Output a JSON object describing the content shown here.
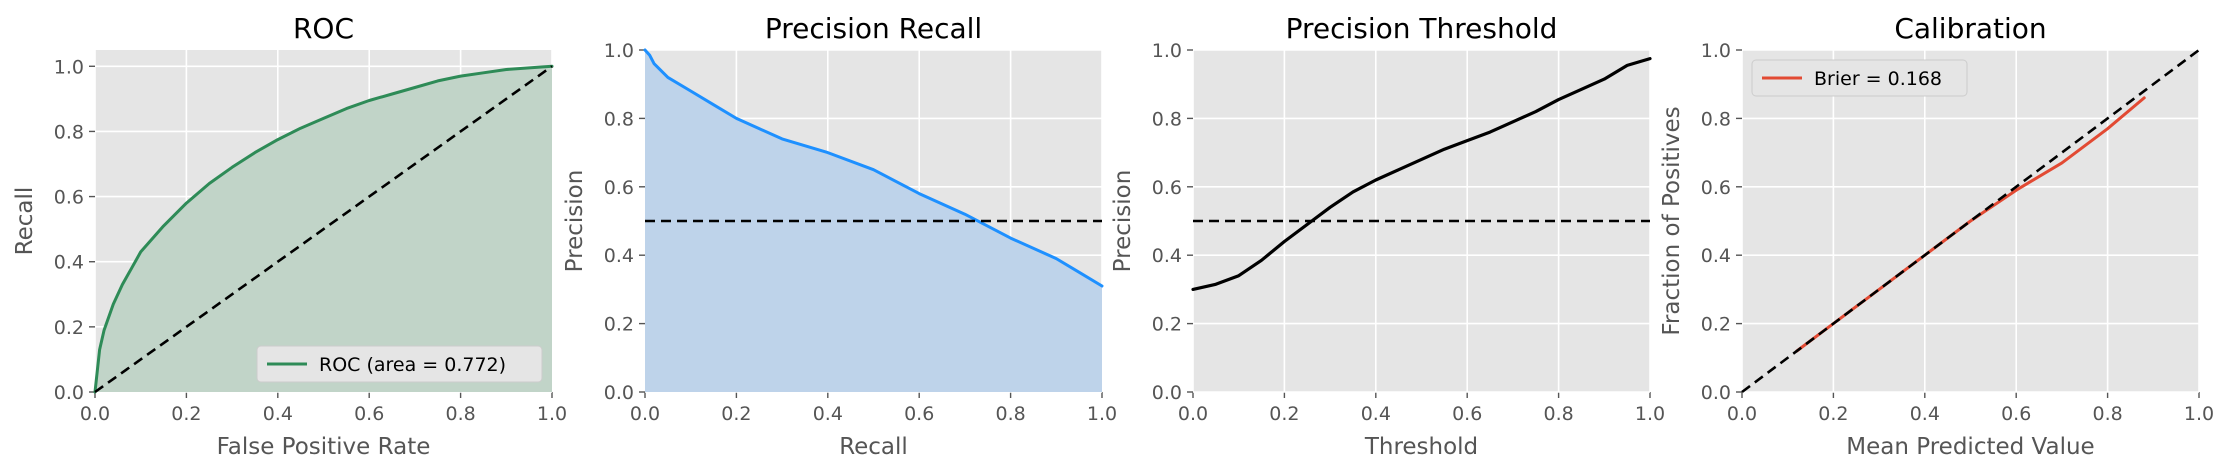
{
  "chart_data": [
    {
      "type": "area",
      "title": "ROC",
      "xlabel": "False Positive Rate",
      "ylabel": "Recall",
      "xlim": [
        0,
        1
      ],
      "ylim": [
        0,
        1.05
      ],
      "xticks": [
        "0.0",
        "0.2",
        "0.4",
        "0.6",
        "0.8",
        "1.0"
      ],
      "yticks": [
        "0.0",
        "0.2",
        "0.4",
        "0.6",
        "0.8",
        "1.0"
      ],
      "grid": true,
      "legend_position": "lower-right",
      "series": [
        {
          "name": "ROC (area = 0.772)",
          "color": "#2e8b57",
          "fill": "#c1d4c8",
          "x": [
            0,
            0.01,
            0.02,
            0.04,
            0.06,
            0.08,
            0.1,
            0.15,
            0.2,
            0.25,
            0.3,
            0.35,
            0.4,
            0.45,
            0.5,
            0.55,
            0.6,
            0.65,
            0.7,
            0.75,
            0.8,
            0.85,
            0.9,
            0.95,
            1.0
          ],
          "y": [
            0,
            0.13,
            0.19,
            0.27,
            0.33,
            0.38,
            0.43,
            0.51,
            0.58,
            0.64,
            0.69,
            0.735,
            0.775,
            0.81,
            0.84,
            0.87,
            0.895,
            0.915,
            0.935,
            0.955,
            0.97,
            0.98,
            0.99,
            0.995,
            1.0
          ]
        }
      ],
      "reference": {
        "x": [
          0,
          1
        ],
        "y": [
          0,
          1
        ],
        "style": "dashed",
        "color": "#000000"
      }
    },
    {
      "type": "area",
      "title": "Precision Recall",
      "xlabel": "Recall",
      "ylabel": "Precision",
      "xlim": [
        0,
        1
      ],
      "ylim": [
        0,
        1
      ],
      "xticks": [
        "0.0",
        "0.2",
        "0.4",
        "0.6",
        "0.8",
        "1.0"
      ],
      "yticks": [
        "0.0",
        "0.2",
        "0.4",
        "0.6",
        "0.8",
        "1.0"
      ],
      "grid": true,
      "series": [
        {
          "name": "",
          "color": "#1e90ff",
          "fill": "#bed3ea",
          "x": [
            0,
            0.01,
            0.02,
            0.05,
            0.1,
            0.15,
            0.2,
            0.3,
            0.4,
            0.5,
            0.6,
            0.7,
            0.8,
            0.9,
            0.95,
            1.0
          ],
          "y": [
            1.0,
            0.985,
            0.96,
            0.92,
            0.88,
            0.84,
            0.8,
            0.74,
            0.7,
            0.65,
            0.58,
            0.52,
            0.45,
            0.39,
            0.35,
            0.31
          ]
        }
      ],
      "reference": {
        "x": [
          0,
          1
        ],
        "y": [
          0.5,
          0.5
        ],
        "style": "dashed",
        "color": "#000000"
      }
    },
    {
      "type": "line",
      "title": "Precision Threshold",
      "xlabel": "Threshold",
      "ylabel": "Precision",
      "xlim": [
        0,
        1
      ],
      "ylim": [
        0,
        1
      ],
      "xticks": [
        "0.0",
        "0.2",
        "0.4",
        "0.6",
        "0.8",
        "1.0"
      ],
      "yticks": [
        "0.0",
        "0.2",
        "0.4",
        "0.6",
        "0.8",
        "1.0"
      ],
      "grid": true,
      "series": [
        {
          "name": "",
          "color": "#000000",
          "x": [
            0,
            0.05,
            0.1,
            0.15,
            0.2,
            0.25,
            0.3,
            0.35,
            0.4,
            0.45,
            0.5,
            0.55,
            0.6,
            0.65,
            0.7,
            0.75,
            0.8,
            0.85,
            0.9,
            0.95,
            1.0
          ],
          "y": [
            0.3,
            0.315,
            0.34,
            0.385,
            0.44,
            0.49,
            0.54,
            0.585,
            0.62,
            0.65,
            0.68,
            0.71,
            0.735,
            0.76,
            0.79,
            0.82,
            0.855,
            0.885,
            0.915,
            0.955,
            0.975
          ]
        }
      ],
      "reference": {
        "x": [
          0,
          1
        ],
        "y": [
          0.5,
          0.5
        ],
        "style": "dashed",
        "color": "#000000"
      }
    },
    {
      "type": "line",
      "title": "Calibration",
      "xlabel": "Mean Predicted Value",
      "ylabel": "Fraction of Positives",
      "xlim": [
        0,
        1
      ],
      "ylim": [
        0,
        1
      ],
      "xticks": [
        "0.0",
        "0.2",
        "0.4",
        "0.6",
        "0.8",
        "1.0"
      ],
      "yticks": [
        "0.0",
        "0.2",
        "0.4",
        "0.6",
        "0.8",
        "1.0"
      ],
      "grid": true,
      "legend_position": "upper-left",
      "series": [
        {
          "name": "Brier = 0.168",
          "color": "#e24a33",
          "x": [
            0.12,
            0.2,
            0.3,
            0.4,
            0.5,
            0.6,
            0.7,
            0.8,
            0.88
          ],
          "y": [
            0.12,
            0.2,
            0.3,
            0.4,
            0.5,
            0.59,
            0.67,
            0.77,
            0.86
          ]
        }
      ],
      "reference": {
        "x": [
          0,
          1
        ],
        "y": [
          0,
          1
        ],
        "style": "dashed",
        "color": "#000000"
      }
    }
  ]
}
